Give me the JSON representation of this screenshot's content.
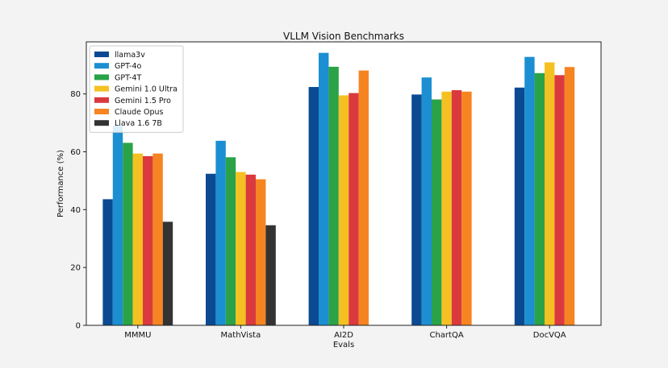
{
  "chart_data": {
    "type": "bar",
    "title": "VLLM Vision Benchmarks",
    "xlabel": "Evals",
    "ylabel": "Performance (%)",
    "ylim": [
      0,
      98
    ],
    "yticks": [
      0,
      20,
      40,
      60,
      80
    ],
    "grid": false,
    "legend_position": "top-left",
    "categories": [
      "MMMU",
      "MathVista",
      "AI2D",
      "ChartQA",
      "DocVQA"
    ],
    "series": [
      {
        "name": "llama3v",
        "color": "#0b4a92",
        "values": [
          43.6,
          52.4,
          82.4,
          79.8,
          82.2
        ]
      },
      {
        "name": "GPT-4o",
        "color": "#1b8fd1",
        "values": [
          69.1,
          63.8,
          94.2,
          85.7,
          92.8
        ]
      },
      {
        "name": "GPT-4T",
        "color": "#2aa248",
        "values": [
          63.1,
          58.1,
          89.4,
          78.1,
          87.2
        ]
      },
      {
        "name": "Gemini 1.0 Ultra",
        "color": "#f5c122",
        "values": [
          59.4,
          53.0,
          79.5,
          80.8,
          90.9
        ]
      },
      {
        "name": "Gemini 1.5 Pro",
        "color": "#da3a3e",
        "values": [
          58.5,
          52.1,
          80.3,
          81.3,
          86.5
        ]
      },
      {
        "name": "Claude Opus",
        "color": "#f68420",
        "values": [
          59.4,
          50.5,
          88.1,
          80.8,
          89.3
        ]
      },
      {
        "name": "Llava 1.6 7B",
        "color": "#333333",
        "values": [
          35.8,
          34.6,
          null,
          null,
          null
        ]
      }
    ]
  }
}
